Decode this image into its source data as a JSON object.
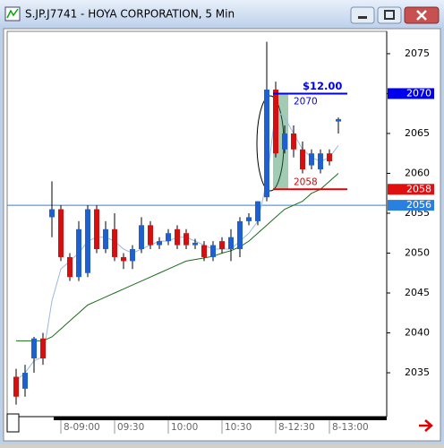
{
  "chart_data": {
    "type": "candlestick",
    "title": "S.JP.J7741 - HOYA CORPORATION, 5 Min",
    "categories": [
      null,
      null,
      null,
      null,
      null,
      "8-09:00",
      null,
      null,
      null,
      null,
      null,
      "09:30",
      null,
      null,
      null,
      null,
      null,
      "10:00",
      null,
      null,
      null,
      null,
      null,
      "10:30",
      null,
      null,
      null,
      null,
      null,
      "8-12:30",
      null,
      null,
      null,
      null,
      null,
      "8-13:00",
      null
    ],
    "open": [
      2034.5,
      2033,
      2036.8,
      2039.3,
      2054.5,
      2055.5,
      2049.5,
      2047,
      2047.5,
      2055.5,
      2050.5,
      2053,
      2049.5,
      2049,
      2050.5,
      2053.5,
      2051,
      2051.5,
      2053,
      2052.5,
      2051,
      2051,
      2049.5,
      2051.5,
      2050.5,
      2050.5,
      2054,
      2054,
      2057,
      2070.5,
      2063,
      2065,
      2063,
      2061,
      2060.5,
      2062.5,
      2066.5
    ],
    "high": [
      2035.5,
      2036,
      2039.5,
      2040,
      2059,
      2056,
      2050,
      2054,
      2056,
      2056,
      2054,
      2055,
      2050,
      2051,
      2054.5,
      2054,
      2052,
      2053,
      2053.5,
      2053,
      2051.8,
      2051.5,
      2051.5,
      2052,
      2053,
      2054.5,
      2055,
      2056.5,
      2076.5,
      2071.5,
      2066,
      2066,
      2064,
      2063,
      2063,
      2063,
      2067
    ],
    "low": [
      2031,
      2032,
      2035,
      2036,
      2052,
      2049,
      2046.5,
      2046.5,
      2047,
      2050,
      2050,
      2049,
      2048,
      2048,
      2050,
      2050.5,
      2050.5,
      2051,
      2050.5,
      2050.5,
      2050.5,
      2049,
      2049,
      2050,
      2049,
      2049.5,
      2053.5,
      2053.5,
      2056.5,
      2062,
      2062.5,
      2062,
      2060,
      2060.5,
      2060,
      2061,
      2065
    ],
    "close": [
      2032,
      2035,
      2039.3,
      2036.8,
      2055.5,
      2049.5,
      2047,
      2053,
      2055.5,
      2050.5,
      2053,
      2049.5,
      2049,
      2050.5,
      2053.5,
      2051,
      2051.5,
      2052.5,
      2051,
      2051,
      2051.3,
      2049.5,
      2051,
      2050.5,
      2052,
      2054,
      2054.5,
      2056.5,
      2070.5,
      2062.5,
      2065,
      2063,
      2060.5,
      2062.5,
      2062.5,
      2061.5,
      2066.8
    ],
    "up_color": "#1f5fcf",
    "down_color": "#d41010",
    "series": [
      {
        "color": "#9bb8e0",
        "values": [
          2034,
          2035,
          2036.5,
          2037,
          2044,
          2048,
          2049,
          2050,
          2051.5,
          2052,
          2052,
          2051.5,
          2050.5,
          2050,
          2050.5,
          2051,
          2051.5,
          2051.5,
          2052,
          2052,
          2051.5,
          2051,
          2050.5,
          2050.5,
          2050.5,
          2051.5,
          2052.5,
          2054,
          2059,
          2068,
          2067,
          2065,
          2063,
          2062,
          2061.5,
          2062,
          2063.5
        ]
      },
      {
        "color": "#1a6b1a",
        "values": [
          2039,
          2039,
          2039,
          2039,
          2039.5,
          2040.5,
          2041.5,
          2042.5,
          2043.5,
          2044,
          2044.5,
          2045,
          2045.5,
          2046,
          2046.5,
          2047,
          2047.5,
          2048,
          2048.5,
          2049,
          2049.2,
          2049.4,
          2049.6,
          2050,
          2050.3,
          2050.8,
          2051.5,
          2052.5,
          2053.5,
          2054.5,
          2055.5,
          2056,
          2056.5,
          2057.5,
          2058,
          2059,
          2060
        ]
      }
    ],
    "levels": [
      {
        "value": 2070,
        "color": "#0000ee"
      },
      {
        "value": 2058,
        "color": "#e00000"
      }
    ],
    "difference_label": "$12.00",
    "price_tags": [
      {
        "value": 2070,
        "color": "#0000ee"
      },
      {
        "value": 2058,
        "color": "#e01010"
      },
      {
        "value": 2056,
        "color": "#2a80e0"
      }
    ],
    "ylim": [
      2029.5,
      2077.8
    ],
    "yticks": [
      2035,
      2040,
      2045,
      2050,
      2055,
      2060,
      2065,
      2070,
      2075
    ]
  }
}
